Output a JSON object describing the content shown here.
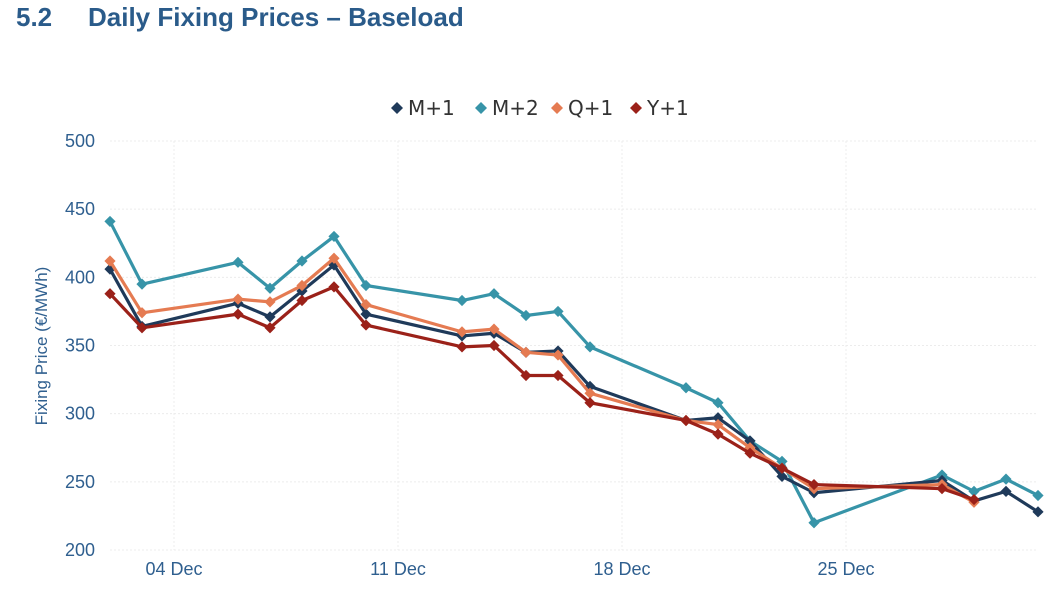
{
  "header": {
    "number": "5.2",
    "title": "Daily Fixing Prices – Baseload"
  },
  "chart_data": {
    "type": "line",
    "title": "Daily Fixing Prices – Baseload",
    "xlabel": "",
    "ylabel": "Fixing Price (€/MWh)",
    "ylim": [
      200,
      500
    ],
    "yticks": [
      "200",
      "250",
      "300",
      "350",
      "400",
      "450",
      "500"
    ],
    "xlim": [
      0,
      29
    ],
    "xticks": [
      {
        "day": 2,
        "label": "04 Dec"
      },
      {
        "day": 9,
        "label": "11 Dec"
      },
      {
        "day": 16,
        "label": "18 Dec"
      },
      {
        "day": 23,
        "label": "25 Dec"
      }
    ],
    "x": [
      0,
      1,
      4,
      5,
      6,
      7,
      8,
      11,
      12,
      13,
      14,
      15,
      18,
      19,
      20,
      21,
      22,
      26,
      27,
      28,
      29
    ],
    "series": [
      {
        "name": "M+1",
        "color": "#1f3a5a",
        "values": [
          406,
          364,
          381,
          371,
          390,
          409,
          373,
          357,
          359,
          345,
          346,
          320,
          295,
          297,
          280,
          254,
          242,
          251,
          236,
          243,
          228
        ]
      },
      {
        "name": "M+2",
        "color": "#3794a8",
        "values": [
          441,
          395,
          411,
          392,
          412,
          430,
          394,
          383,
          388,
          372,
          375,
          349,
          319,
          308,
          280,
          265,
          220,
          255,
          243,
          252,
          240
        ]
      },
      {
        "name": "Q+1",
        "color": "#e57b52",
        "values": [
          412,
          374,
          384,
          382,
          394,
          414,
          380,
          360,
          362,
          345,
          343,
          315,
          295,
          292,
          275,
          260,
          245,
          248,
          235,
          null,
          null
        ]
      },
      {
        "name": "Y+1",
        "color": "#9b2119",
        "values": [
          388,
          363,
          373,
          363,
          383,
          393,
          365,
          349,
          350,
          328,
          328,
          308,
          295,
          285,
          271,
          260,
          248,
          245,
          237,
          null,
          null
        ]
      }
    ],
    "legend": "top-center",
    "grid": true
  }
}
